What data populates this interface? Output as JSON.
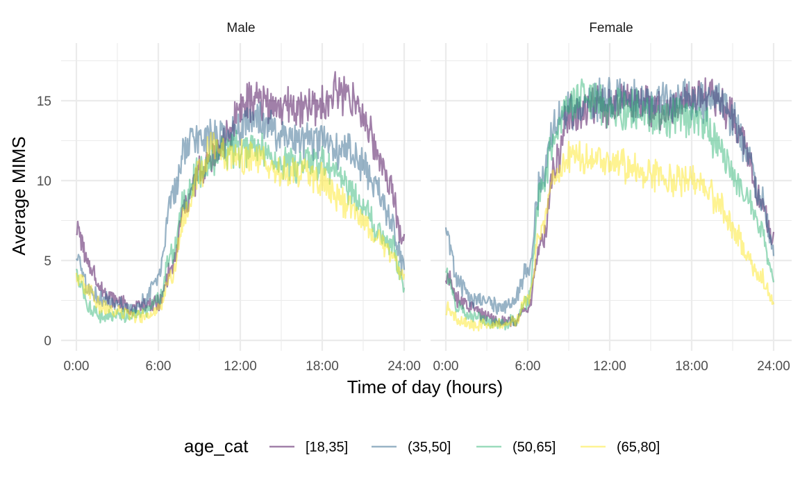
{
  "chart_data": {
    "type": "line",
    "xlabel": "Time of day (hours)",
    "ylabel": "Average MIMS",
    "xlim": [
      0,
      24
    ],
    "ylim": [
      0,
      17.5
    ],
    "x_ticks": [
      0,
      6,
      12,
      18,
      24
    ],
    "x_tick_labels": [
      "0:00",
      "6:00",
      "12:00",
      "18:00",
      "24:00"
    ],
    "y_ticks": [
      0,
      5,
      10,
      15
    ],
    "y_tick_labels": [
      "0",
      "5",
      "10",
      "15"
    ],
    "grid": true,
    "legend": {
      "title": "age_cat",
      "position": "bottom",
      "entries": [
        "[18,35]",
        "(35,50]",
        "(50,65]",
        "(65,80]"
      ]
    },
    "colors": {
      "[18,35]": "#440154",
      "(35,50]": "#31688e",
      "(50,65]": "#35b779",
      "(65,80]": "#fde725"
    },
    "x": [
      0,
      1,
      2,
      3,
      4,
      5,
      6,
      7,
      8,
      9,
      10,
      11,
      12,
      13,
      14,
      15,
      16,
      17,
      18,
      19,
      20,
      21,
      22,
      23,
      24
    ],
    "panels": [
      {
        "facet": "Male",
        "series": [
          {
            "name": "[18,35]",
            "values": [
              7.0,
              4.5,
              3.0,
              2.5,
              2.0,
              2.2,
              2.3,
              4.5,
              8.5,
              10.5,
              11.5,
              12.5,
              14.5,
              15.0,
              15.0,
              14.5,
              14.5,
              14.5,
              14.5,
              15.5,
              15.5,
              14.0,
              12.0,
              9.5,
              6.0
            ]
          },
          {
            "name": "(35,50]",
            "values": [
              5.0,
              3.0,
              2.5,
              2.2,
              2.0,
              2.5,
              4.0,
              9.0,
              12.0,
              12.5,
              12.5,
              12.5,
              13.5,
              13.5,
              13.5,
              13.0,
              12.5,
              12.5,
              12.5,
              12.0,
              12.0,
              11.0,
              9.5,
              7.5,
              4.5
            ]
          },
          {
            "name": "(50,65]",
            "values": [
              4.0,
              2.0,
              1.5,
              1.5,
              1.5,
              1.8,
              2.5,
              5.5,
              9.0,
              10.5,
              11.5,
              12.0,
              12.0,
              12.0,
              11.5,
              11.0,
              11.0,
              11.0,
              11.0,
              10.5,
              9.5,
              8.5,
              7.0,
              6.0,
              3.5
            ]
          },
          {
            "name": "(65,80]",
            "values": [
              4.0,
              3.0,
              2.0,
              1.8,
              1.5,
              1.5,
              2.0,
              4.0,
              8.0,
              10.5,
              12.0,
              11.5,
              11.5,
              11.5,
              11.0,
              10.5,
              10.5,
              10.5,
              10.0,
              9.0,
              8.5,
              7.5,
              6.5,
              5.5,
              4.0
            ]
          }
        ]
      },
      {
        "facet": "Female",
        "series": [
          {
            "name": "[18,35]",
            "values": [
              4.0,
              2.5,
              2.0,
              1.5,
              1.2,
              1.2,
              2.0,
              6.0,
              11.0,
              14.0,
              14.5,
              14.5,
              14.5,
              15.0,
              15.0,
              14.5,
              14.5,
              14.5,
              15.0,
              15.5,
              15.0,
              14.0,
              12.0,
              9.0,
              6.0
            ]
          },
          {
            "name": "(35,50]",
            "values": [
              6.5,
              3.5,
              2.5,
              2.5,
              2.0,
              2.5,
              4.5,
              10.0,
              13.5,
              14.5,
              14.5,
              15.0,
              15.0,
              15.5,
              15.0,
              15.0,
              15.0,
              15.0,
              15.0,
              15.0,
              15.0,
              14.0,
              12.0,
              9.0,
              6.0
            ]
          },
          {
            "name": "(50,65]",
            "values": [
              4.0,
              2.0,
              1.5,
              1.2,
              1.0,
              1.2,
              2.5,
              9.5,
              13.0,
              14.5,
              15.0,
              15.0,
              14.5,
              14.5,
              14.5,
              14.0,
              14.0,
              14.0,
              14.0,
              13.5,
              12.0,
              10.5,
              9.0,
              7.0,
              4.0
            ]
          },
          {
            "name": "(65,80]",
            "values": [
              2.0,
              1.2,
              1.0,
              1.0,
              1.0,
              1.2,
              2.5,
              7.0,
              10.5,
              11.5,
              11.5,
              11.5,
              11.0,
              11.0,
              10.5,
              10.5,
              10.0,
              10.0,
              10.0,
              9.5,
              8.5,
              7.0,
              5.5,
              4.0,
              2.5
            ]
          }
        ]
      }
    ]
  }
}
